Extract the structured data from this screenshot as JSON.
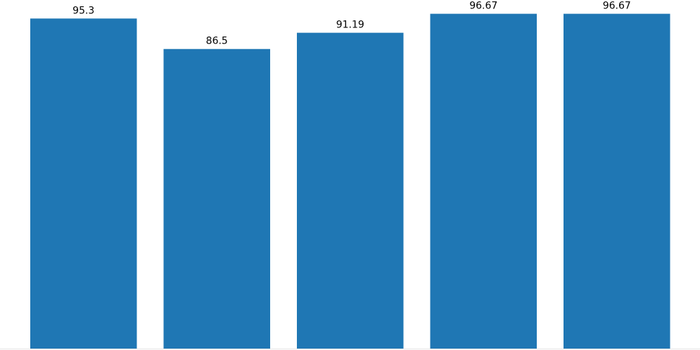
{
  "chart_data": {
    "type": "bar",
    "categories": [
      "",
      "",
      "",
      "",
      ""
    ],
    "values": [
      95.3,
      86.5,
      91.19,
      96.67,
      96.67
    ],
    "value_labels": [
      "95.3",
      "86.5",
      "91.19",
      "96.67",
      "96.67"
    ],
    "title": "",
    "xlabel": "",
    "ylabel": "",
    "ylim": [
      0,
      100
    ],
    "grid": false,
    "bar_color": "#1f77b4",
    "baseline_color": "#e6e6e6"
  }
}
